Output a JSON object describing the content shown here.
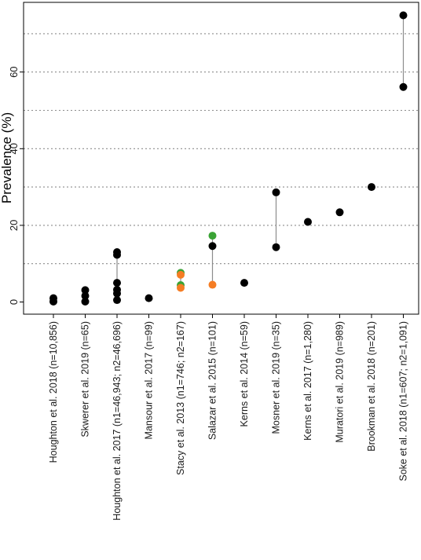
{
  "chart_data": {
    "type": "scatter",
    "title": "",
    "xlabel": "",
    "ylabel": "Prevalence (%)",
    "ylim": [
      -3,
      77
    ],
    "yticks": [
      0,
      20,
      40,
      60
    ],
    "grid": "horizontal dotted at 10, 20, 30, 40, 50, 60, 70",
    "categories": [
      "Houghton et al. 2018 (n=10,856)",
      "Skwerer et al. 2019 (n=65)",
      "Houghton et al. 2017  (n1=46,943; n2=46,696)",
      "Mansour et al. 2017 (n=99)",
      "Stacy et al. 2013 (n1=746; n2=167)",
      "Salazar et al. 2015 (n=101)",
      "Kerns et al. 2014 (n=59)",
      "Mosner et al. 2019 (n=35)",
      "Kerns et al. 2017 (n=1,280)",
      "Muratori et al. 2019 (n=989)",
      "Brookman et al. 2018 (n=201)",
      "Soke et al. 2018  (n1=607; n2=1,091)"
    ],
    "colors": {
      "black": "#000000",
      "green": "#3aa335",
      "orange": "#f57d24",
      "range_line": "#8c8c8c",
      "grid": "#8c8c8c"
    },
    "points": [
      {
        "study": 0,
        "y": 1.0,
        "color": "black"
      },
      {
        "study": 0,
        "y": 0.1,
        "color": "black"
      },
      {
        "study": 1,
        "y": 3.1,
        "color": "black"
      },
      {
        "study": 1,
        "y": 1.6,
        "color": "black"
      },
      {
        "study": 1,
        "y": 0.1,
        "color": "black"
      },
      {
        "study": 2,
        "y": 13.0,
        "color": "black"
      },
      {
        "study": 2,
        "y": 12.3,
        "color": "black"
      },
      {
        "study": 2,
        "y": 5.0,
        "color": "black"
      },
      {
        "study": 2,
        "y": 3.2,
        "color": "black"
      },
      {
        "study": 2,
        "y": 2.2,
        "color": "black"
      },
      {
        "study": 2,
        "y": 0.5,
        "color": "black"
      },
      {
        "study": 3,
        "y": 1.0,
        "color": "black"
      },
      {
        "study": 4,
        "y": 7.6,
        "color": "green"
      },
      {
        "study": 4,
        "y": 7.1,
        "color": "orange"
      },
      {
        "study": 4,
        "y": 4.4,
        "color": "green"
      },
      {
        "study": 4,
        "y": 3.7,
        "color": "orange"
      },
      {
        "study": 5,
        "y": 17.3,
        "color": "green"
      },
      {
        "study": 5,
        "y": 14.6,
        "color": "black"
      },
      {
        "study": 5,
        "y": 4.5,
        "color": "orange"
      },
      {
        "study": 6,
        "y": 5.0,
        "color": "black"
      },
      {
        "study": 7,
        "y": 28.6,
        "color": "black"
      },
      {
        "study": 7,
        "y": 14.3,
        "color": "black"
      },
      {
        "study": 8,
        "y": 20.9,
        "color": "black"
      },
      {
        "study": 9,
        "y": 23.4,
        "color": "black"
      },
      {
        "study": 10,
        "y": 30.0,
        "color": "black"
      },
      {
        "study": 11,
        "y": 74.8,
        "color": "black"
      },
      {
        "study": 11,
        "y": 56.1,
        "color": "black"
      }
    ],
    "ranges": [
      {
        "study": 2,
        "from": 0.5,
        "to": 13.0
      },
      {
        "study": 4,
        "from": 3.7,
        "to": 7.6
      },
      {
        "study": 5,
        "from": 4.5,
        "to": 17.3
      },
      {
        "study": 7,
        "from": 14.3,
        "to": 28.6
      },
      {
        "study": 11,
        "from": 56.1,
        "to": 74.8
      }
    ]
  }
}
